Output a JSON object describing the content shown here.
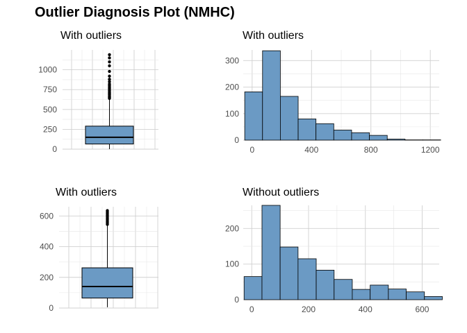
{
  "title": "Outlier Diagnosis Plot (NMHC)",
  "colors": {
    "fill": "#6B9AC4",
    "outline": "#000000",
    "grid_major": "#d0d0d0",
    "grid_minor": "#e6e6e6",
    "tick_text": "#4d4d4d"
  },
  "chart_data": [
    {
      "type": "box",
      "title": "With outliers",
      "ylim": [
        0,
        1250
      ],
      "yticks": [
        0,
        250,
        500,
        750,
        1000
      ],
      "grid": true,
      "stats": {
        "min": 0,
        "q1": 65,
        "median": 150,
        "q3": 290,
        "max": 630
      },
      "outliers": [
        640,
        655,
        670,
        690,
        705,
        720,
        740,
        760,
        780,
        800,
        820,
        850,
        880,
        920,
        980,
        1050,
        1100,
        1150,
        1190
      ]
    },
    {
      "type": "histogram",
      "title": "With outliers",
      "xlim": [
        -60,
        1260
      ],
      "ylim": [
        0,
        340
      ],
      "xticks": [
        0,
        400,
        800,
        1200
      ],
      "yticks": [
        0,
        100,
        200,
        300
      ],
      "grid": true,
      "bins": [
        {
          "x0": -50,
          "x1": 70,
          "count": 182
        },
        {
          "x0": 70,
          "x1": 190,
          "count": 337
        },
        {
          "x0": 190,
          "x1": 310,
          "count": 165
        },
        {
          "x0": 310,
          "x1": 430,
          "count": 80
        },
        {
          "x0": 430,
          "x1": 550,
          "count": 62
        },
        {
          "x0": 550,
          "x1": 670,
          "count": 38
        },
        {
          "x0": 670,
          "x1": 790,
          "count": 28
        },
        {
          "x0": 790,
          "x1": 910,
          "count": 18
        },
        {
          "x0": 910,
          "x1": 1030,
          "count": 4
        },
        {
          "x0": 1030,
          "x1": 1150,
          "count": 1
        },
        {
          "x0": 1150,
          "x1": 1270,
          "count": 1
        }
      ]
    },
    {
      "type": "box",
      "title": "With outliers",
      "ylim": [
        0,
        660
      ],
      "yticks": [
        0,
        200,
        400,
        600
      ],
      "grid": true,
      "stats": {
        "min": 5,
        "q1": 65,
        "median": 140,
        "q3": 262,
        "max": 540
      },
      "outliers": [
        545,
        555,
        565,
        575,
        585,
        595,
        605,
        615,
        625,
        635
      ]
    },
    {
      "type": "histogram",
      "title": "Without outliers",
      "xlim": [
        -30,
        660
      ],
      "ylim": [
        0,
        265
      ],
      "xticks": [
        0,
        200,
        400,
        600
      ],
      "yticks": [
        0,
        100,
        200
      ],
      "grid": true,
      "bins": [
        {
          "x0": -27,
          "x1": 36,
          "count": 65
        },
        {
          "x0": 36,
          "x1": 100,
          "count": 265
        },
        {
          "x0": 100,
          "x1": 163,
          "count": 148
        },
        {
          "x0": 163,
          "x1": 227,
          "count": 115
        },
        {
          "x0": 227,
          "x1": 290,
          "count": 83
        },
        {
          "x0": 290,
          "x1": 354,
          "count": 57
        },
        {
          "x0": 354,
          "x1": 417,
          "count": 29
        },
        {
          "x0": 417,
          "x1": 481,
          "count": 41
        },
        {
          "x0": 481,
          "x1": 544,
          "count": 30
        },
        {
          "x0": 544,
          "x1": 608,
          "count": 22
        },
        {
          "x0": 608,
          "x1": 671,
          "count": 9
        }
      ]
    }
  ]
}
